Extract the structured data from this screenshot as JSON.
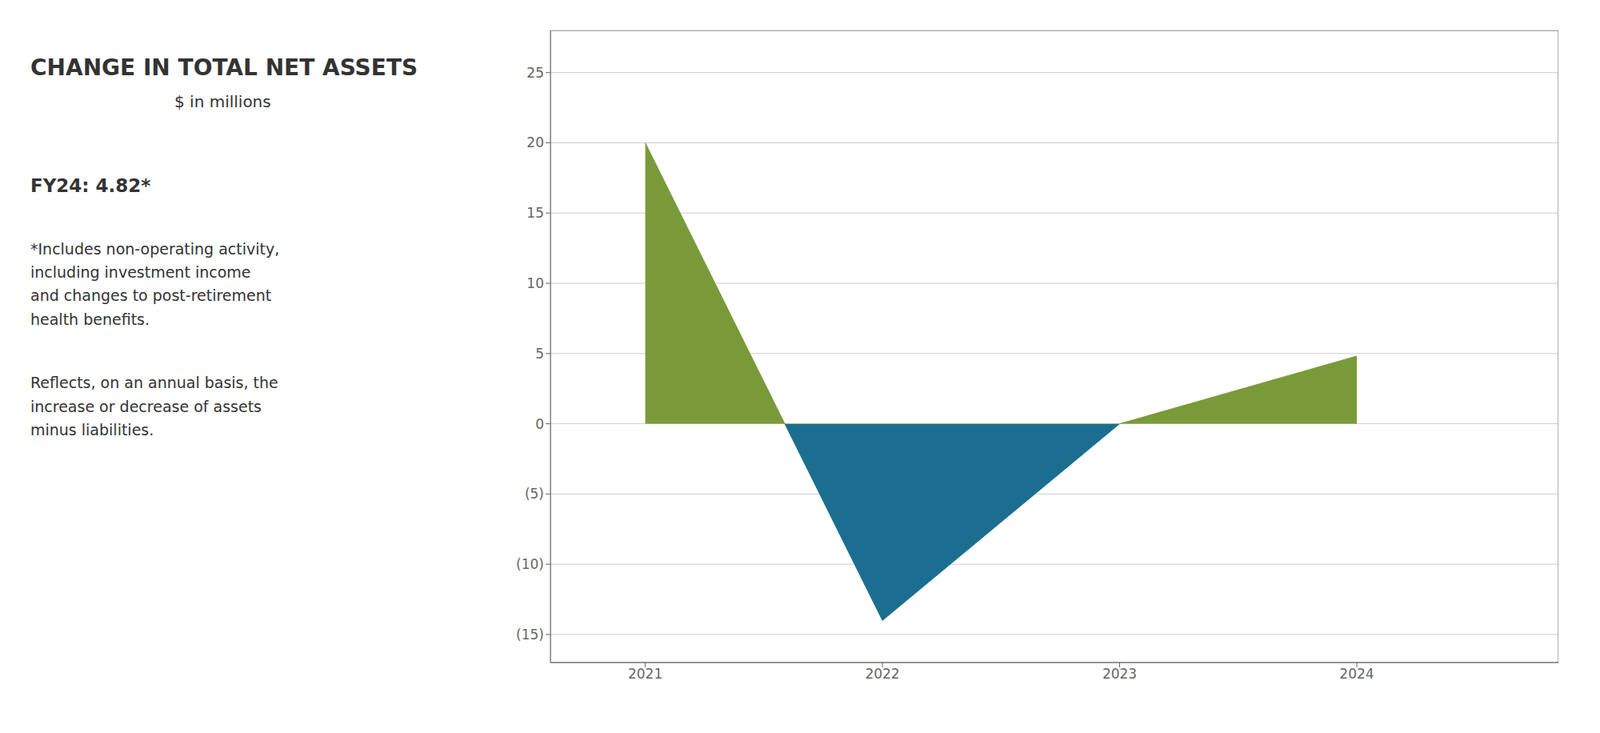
{
  "chart_data": {
    "type": "area",
    "title": "CHANGE IN TOTAL NET ASSETS",
    "subtitle": "$ in millions",
    "annotations": [
      "FY24: 4.82*",
      "*Includes non-operating activity,\nincluding investment income\nand changes to post-retirement\nhealth benefits.",
      "Reflects, on an annual basis, the\nincrease or decrease of assets\nminus liabilities."
    ],
    "x": [
      2021,
      2022,
      2023,
      2024
    ],
    "values": [
      20.0,
      -14.0,
      0.0,
      4.82
    ],
    "colors": [
      "#7a9a3a",
      "#1b6e8f"
    ],
    "xlim": [
      2020.6,
      2024.85
    ],
    "xticks": [
      2021,
      2022,
      2023,
      2024
    ],
    "ylim": [
      -17,
      28
    ],
    "yticks": [
      25,
      20,
      15,
      10,
      5,
      0,
      {
        "value": -5,
        "label": "(5)"
      },
      {
        "value": -10,
        "label": "(10)"
      },
      {
        "value": -15,
        "label": "(15)"
      }
    ],
    "grid": true
  }
}
